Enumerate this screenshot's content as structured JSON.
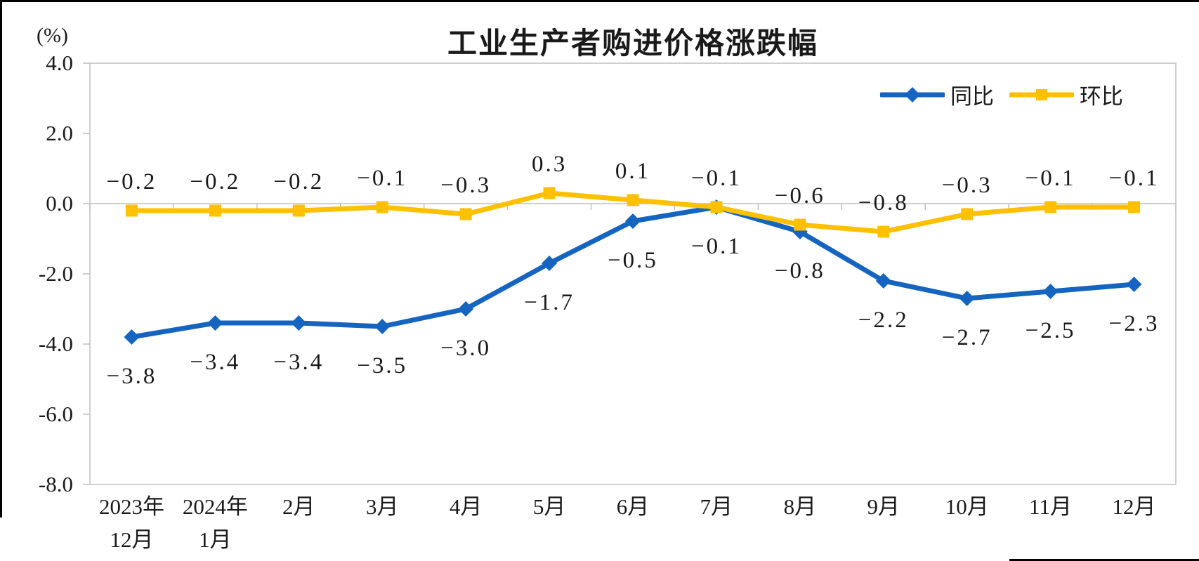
{
  "chart_data": {
    "type": "line",
    "title": "工业生产者购进价格涨跌幅",
    "unit_label": "(%)",
    "categories": [
      [
        "2023年",
        "12月"
      ],
      [
        "2024年",
        "1月"
      ],
      [
        "2月"
      ],
      [
        "3月"
      ],
      [
        "4月"
      ],
      [
        "5月"
      ],
      [
        "6月"
      ],
      [
        "7月"
      ],
      [
        "8月"
      ],
      [
        "9月"
      ],
      [
        "10月"
      ],
      [
        "11月"
      ],
      [
        "12月"
      ]
    ],
    "series": [
      {
        "name": "同比",
        "marker": "diamond",
        "color": "#1565C0",
        "label_side": "below",
        "values": [
          -3.8,
          -3.4,
          -3.4,
          -3.5,
          -3.0,
          -1.7,
          -0.5,
          -0.1,
          -0.8,
          -2.2,
          -2.7,
          -2.5,
          -2.3
        ],
        "labels": [
          "−3.8",
          "−3.4",
          "−3.4",
          "−3.5",
          "−3.0",
          "−1.7",
          "−0.5",
          "−0.1",
          "−0.8",
          "−2.2",
          "−2.7",
          "−2.5",
          "−2.3"
        ]
      },
      {
        "name": "环比",
        "marker": "square",
        "color": "#FFC000",
        "label_side": "above",
        "values": [
          -0.2,
          -0.2,
          -0.2,
          -0.1,
          -0.3,
          0.3,
          0.1,
          -0.1,
          -0.6,
          -0.8,
          -0.3,
          -0.1,
          -0.1
        ],
        "labels": [
          "−0.2",
          "−0.2",
          "−0.2",
          "−0.1",
          "−0.3",
          "0.3",
          "0.1",
          "−0.1",
          "−0.6",
          "−0.8",
          "−0.3",
          "−0.1",
          "−0.1"
        ]
      }
    ],
    "y_axis": {
      "ticks": [
        "4.0",
        "2.0",
        "0.0",
        "-2.0",
        "-4.0",
        "-6.0",
        "-8.0"
      ],
      "max": 4,
      "min": -8,
      "step": 2
    },
    "legend_position": "top-right",
    "grid": false
  },
  "colors": {
    "axis": "#BFBFBF",
    "frame": "#000000",
    "text": "#1A1A1A",
    "background": "#FFFFFF"
  }
}
